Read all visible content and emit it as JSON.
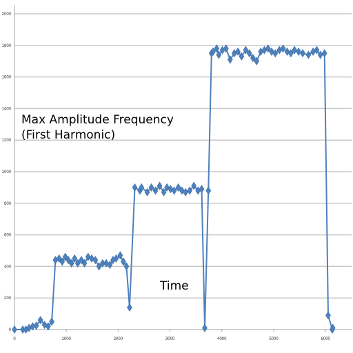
{
  "chart_data": {
    "type": "line",
    "annotations": {
      "title_line1": "Max Amplitude Frequency",
      "title_line2": "(First Harmonic)",
      "xlabel": "Time"
    },
    "xlim": [
      0,
      6400
    ],
    "ylim": [
      0,
      2000
    ],
    "x_ticks": [
      "0",
      "1000",
      "2000",
      "3000",
      "4000",
      "5000",
      "6000"
    ],
    "y_ticks": [
      "0",
      "200",
      "400",
      "600",
      "800",
      "1000",
      "1200",
      "1400",
      "1600",
      "1800",
      "2000"
    ],
    "grid": "horizontal",
    "legend": "none",
    "series": [
      {
        "color": "#4f81bd",
        "marker": "diamond",
        "x": [
          0,
          160,
          220,
          280,
          350,
          420,
          500,
          580,
          650,
          720,
          790,
          860,
          920,
          980,
          1040,
          1100,
          1160,
          1220,
          1290,
          1350,
          1420,
          1490,
          1560,
          1630,
          1700,
          1770,
          1840,
          1900,
          1960,
          2040,
          2100,
          2160,
          2220,
          2320,
          2420,
          2450,
          2560,
          2640,
          2720,
          2800,
          2880,
          2940,
          3010,
          3080,
          3160,
          3230,
          3300,
          3380,
          3460,
          3540,
          3610,
          3670,
          3740,
          3800,
          3830,
          3900,
          3940,
          4010,
          4080,
          4160,
          4240,
          4310,
          4380,
          4460,
          4530,
          4600,
          4670,
          4750,
          4820,
          4890,
          4960,
          5030,
          5110,
          5180,
          5260,
          5330,
          5400,
          5480,
          5560,
          5670,
          5760,
          5830,
          5900,
          5980,
          6050,
          6130,
          6140
        ],
        "y": [
          0,
          0,
          0,
          10,
          20,
          25,
          60,
          30,
          20,
          50,
          440,
          450,
          430,
          460,
          440,
          420,
          450,
          420,
          440,
          420,
          460,
          450,
          440,
          400,
          420,
          420,
          410,
          440,
          450,
          470,
          430,
          400,
          140,
          900,
          880,
          900,
          870,
          900,
          880,
          910,
          870,
          900,
          890,
          880,
          900,
          880,
          870,
          880,
          910,
          880,
          890,
          10,
          880,
          1750,
          1760,
          1780,
          1740,
          1770,
          1780,
          1710,
          1750,
          1760,
          1730,
          1770,
          1750,
          1720,
          1700,
          1760,
          1770,
          1780,
          1760,
          1750,
          1770,
          1780,
          1760,
          1750,
          1770,
          1760,
          1750,
          1740,
          1760,
          1770,
          1740,
          1750,
          90,
          0,
          10
        ]
      }
    ]
  }
}
